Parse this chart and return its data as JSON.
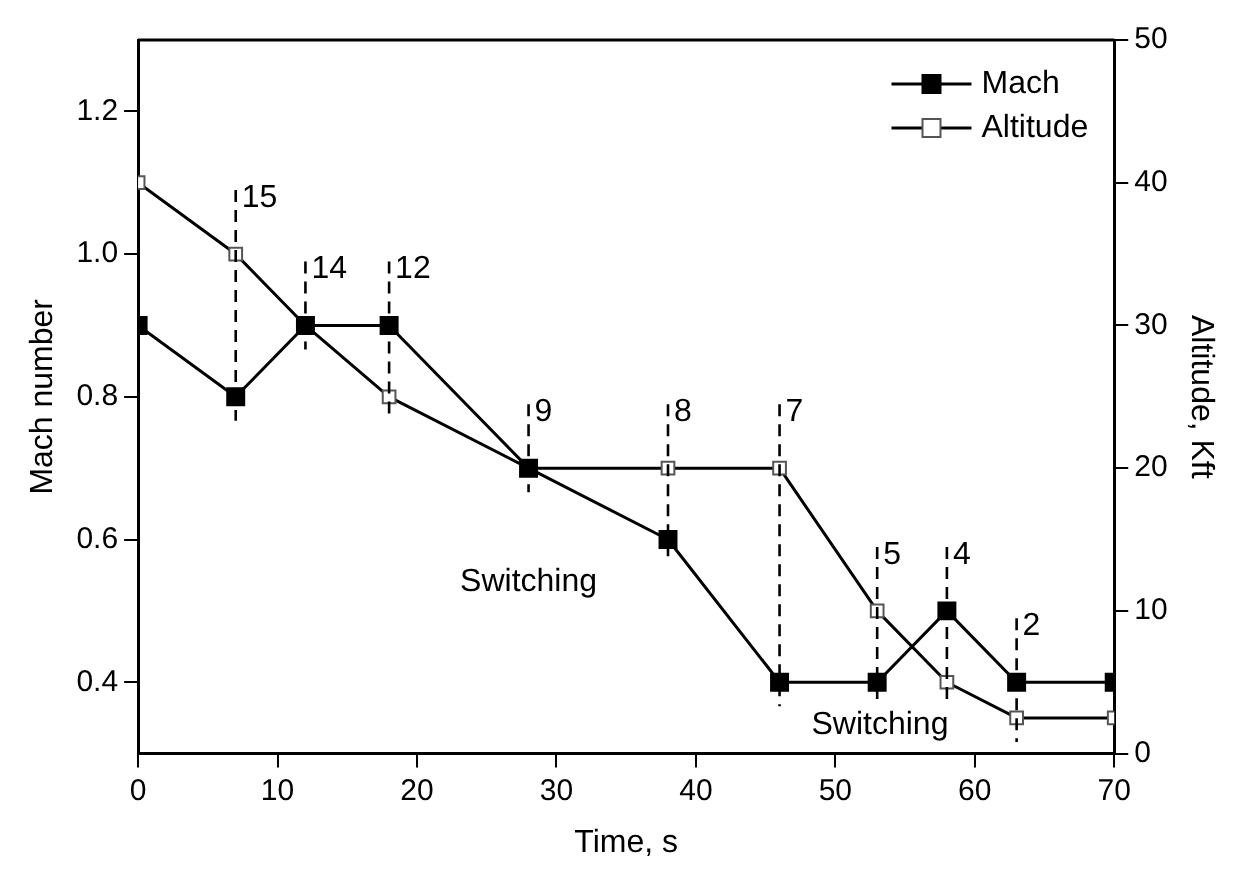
{
  "chart_data": {
    "type": "line",
    "xlabel": "Time, s",
    "ylabel": "Mach number",
    "y2label": "Altitude, Kft",
    "x": [
      0,
      7,
      12,
      18,
      28,
      38,
      46,
      53,
      58,
      63,
      70
    ],
    "series": [
      {
        "name": "Mach",
        "color": "#000000",
        "values": [
          0.9,
          0.8,
          0.9,
          0.9,
          0.7,
          0.6,
          0.4,
          0.4,
          0.5,
          0.4,
          0.4
        ]
      },
      {
        "name": "Altitude",
        "color": "#000000",
        "axis": "y2",
        "values": [
          40,
          35,
          30,
          25,
          20,
          20,
          20,
          10,
          5,
          2.5,
          2.5
        ]
      }
    ],
    "xlim": [
      0,
      70
    ],
    "xticks": [
      0,
      10,
      20,
      30,
      40,
      50,
      60,
      70
    ],
    "ylim": [
      0.3,
      1.3
    ],
    "yticks": [
      {
        "value": 0.4,
        "label": "0.4"
      },
      {
        "value": 0.6,
        "label": "0.6"
      },
      {
        "value": 0.8,
        "label": "0.8"
      },
      {
        "value": 1.0,
        "label": "1.0"
      },
      {
        "value": 1.2,
        "label": "1.2"
      }
    ],
    "y2lim": [
      0,
      50
    ],
    "y2ticks": [
      0,
      10,
      20,
      30,
      40,
      50
    ],
    "ref_lines": [
      {
        "axis": "x",
        "value": 7,
        "line_style": "dashed"
      },
      {
        "axis": "x",
        "value": 12,
        "line_style": "dashed"
      },
      {
        "axis": "x",
        "value": 18,
        "line_style": "dashed"
      },
      {
        "axis": "x",
        "value": 28,
        "line_style": "dashed"
      },
      {
        "axis": "x",
        "value": 38,
        "line_style": "dashed"
      },
      {
        "axis": "x",
        "value": 46,
        "line_style": "dashed"
      },
      {
        "axis": "x",
        "value": 53,
        "line_style": "dashed"
      },
      {
        "axis": "x",
        "value": 58,
        "line_style": "dashed"
      },
      {
        "axis": "x",
        "value": 63,
        "line_style": "dashed"
      }
    ],
    "annotations": [
      {
        "text": "15",
        "x": 7
      },
      {
        "text": "14",
        "x": 12
      },
      {
        "text": "12",
        "x": 18
      },
      {
        "text": "9",
        "x": 28
      },
      {
        "text": "8",
        "x": 38
      },
      {
        "text": "7",
        "x": 46
      },
      {
        "text": "5",
        "x": 53
      },
      {
        "text": "4",
        "x": 58
      },
      {
        "text": "2",
        "x": 63
      },
      "Switching",
      "Switching"
    ],
    "grid": false,
    "legend": "top right",
    "marker": "square",
    "line_style": "solid"
  }
}
